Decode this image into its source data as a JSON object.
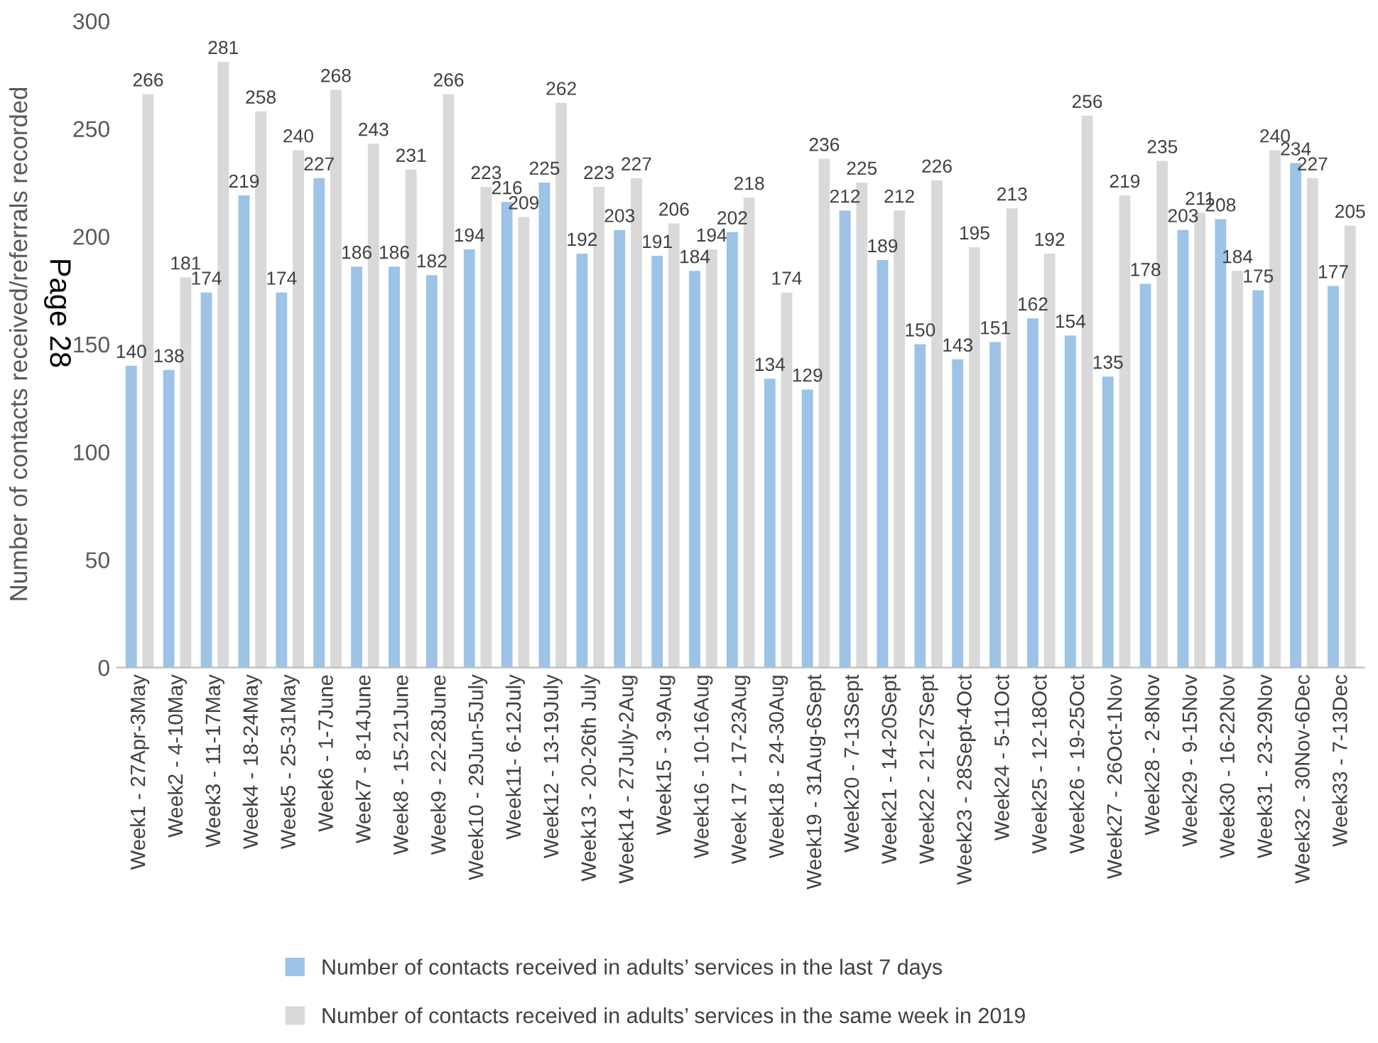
{
  "chart_data": {
    "type": "bar",
    "ylabel": "Number of contacts received/referrals recorded",
    "categories": [
      "Week1 - 27Apr-3May",
      "Week2 - 4-10May",
      "Week3 - 11-17May",
      "Week4 - 18-24May",
      "Week5 - 25-31May",
      "Week6 - 1-7June",
      "Week7 - 8-14June",
      "Week8 - 15-21June",
      "Week9 - 22-28June",
      "Week10 - 29Jun-5July",
      "Week11- 6-12July",
      "Week12 - 13-19July",
      "Week13 - 20-26th July",
      "Week14 - 27July-2Aug",
      "Week15 - 3-9Aug",
      "Week16 - 10-16Aug",
      "Week 17 - 17-23Aug",
      "Week18 - 24-30Aug",
      "Week19 - 31Aug-6Sept",
      "Week20 - 7-13Sept",
      "Week21 - 14-20Sept",
      "Week22 - 21-27Sept",
      "Week23 - 28Sept-4Oct",
      "Week24 - 5-11Oct",
      "Week25 - 12-18Oct",
      "Week26 - 19-25Oct",
      "Week27 - 26Oct-1Nov",
      "Week28 - 2-8Nov",
      "Week29 - 9-15Nov",
      "Week30 - 16-22Nov",
      "Week31 - 23-29Nov",
      "Week32 - 30Nov-6Dec",
      "Week33 - 7-13Dec"
    ],
    "series": [
      {
        "name": "Number of contacts received in adults’ services in the last 7 days",
        "color": "#9dc3e6",
        "values": [
          140,
          138,
          174,
          219,
          174,
          227,
          186,
          186,
          182,
          194,
          216,
          225,
          192,
          203,
          191,
          184,
          202,
          134,
          129,
          212,
          189,
          150,
          143,
          151,
          162,
          154,
          135,
          178,
          203,
          208,
          175,
          234,
          177
        ]
      },
      {
        "name": "Number of contacts received in adults’ services in the same week in 2019",
        "color": "#d9d9d9",
        "values": [
          266,
          181,
          281,
          258,
          240,
          268,
          243,
          231,
          266,
          223,
          209,
          262,
          223,
          227,
          206,
          194,
          218,
          174,
          236,
          225,
          212,
          226,
          195,
          213,
          192,
          256,
          219,
          235,
          211,
          184,
          240,
          227,
          205
        ]
      }
    ],
    "ylim": [
      0,
      300
    ],
    "yticks": [
      0,
      50,
      100,
      150,
      200,
      250,
      300
    ],
    "grid": false,
    "legend": "bottom",
    "data_labels": true,
    "annotations": [
      "Page 28"
    ]
  }
}
